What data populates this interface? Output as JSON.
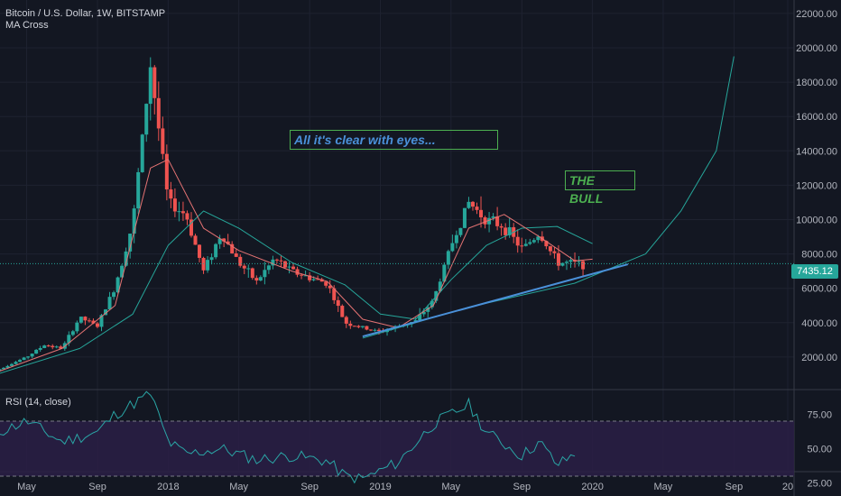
{
  "header": {
    "symbol_title": "Bitcoin / U.S. Dollar, 1W, BITSTAMP",
    "indicator": "MA Cross"
  },
  "rsi_panel": {
    "label": "RSI (14, close)"
  },
  "annotations": {
    "note": "All it's clear with eyes...",
    "bull": "THE BULL"
  },
  "current_price": "7435.12",
  "colors": {
    "background": "#131722",
    "up": "#26a69a",
    "down": "#ef5350",
    "ma_fast": "#e57373",
    "ma_slow": "#26a69a",
    "trendline": "#4a90d9",
    "rsi_line": "#2aa5a5",
    "rsi_band": "#2a1f45",
    "annotation_note": "#4a90d9",
    "annotation_bull": "#4caf50"
  },
  "chart_data": [
    {
      "type": "candlestick",
      "title": "Bitcoin / U.S. Dollar, 1W, BITSTAMP",
      "x_ticks": [
        "May",
        "Sep",
        "2018",
        "May",
        "Sep",
        "2019",
        "May",
        "Sep",
        "2020",
        "May",
        "Sep",
        "20"
      ],
      "y_ticks": [
        "2000.00",
        "4000.00",
        "6000.00",
        "8000.00",
        "10000.00",
        "12000.00",
        "14000.00",
        "16000.00",
        "18000.00",
        "20000.00",
        "22000.00"
      ],
      "ylim": [
        0,
        23000
      ],
      "grid": true,
      "last_price": 7435.12,
      "price_path": [
        {
          "date": "2017-03",
          "price": 1100
        },
        {
          "date": "2017-05",
          "price": 2000
        },
        {
          "date": "2017-06",
          "price": 2700
        },
        {
          "date": "2017-07",
          "price": 2500
        },
        {
          "date": "2017-08",
          "price": 4300
        },
        {
          "date": "2017-09",
          "price": 3800
        },
        {
          "date": "2017-10",
          "price": 6100
        },
        {
          "date": "2017-11",
          "price": 9800
        },
        {
          "date": "2017-12",
          "price": 19000
        },
        {
          "date": "2018-01",
          "price": 11000
        },
        {
          "date": "2018-02",
          "price": 10300
        },
        {
          "date": "2018-03",
          "price": 7000
        },
        {
          "date": "2018-04",
          "price": 9200
        },
        {
          "date": "2018-05",
          "price": 7500
        },
        {
          "date": "2018-06",
          "price": 6400
        },
        {
          "date": "2018-07",
          "price": 7700
        },
        {
          "date": "2018-08",
          "price": 7000
        },
        {
          "date": "2018-09",
          "price": 6600
        },
        {
          "date": "2018-10",
          "price": 6300
        },
        {
          "date": "2018-11",
          "price": 4000
        },
        {
          "date": "2018-12",
          "price": 3700
        },
        {
          "date": "2019-01",
          "price": 3450
        },
        {
          "date": "2019-02",
          "price": 3800
        },
        {
          "date": "2019-03",
          "price": 4100
        },
        {
          "date": "2019-04",
          "price": 5300
        },
        {
          "date": "2019-05",
          "price": 8500
        },
        {
          "date": "2019-06",
          "price": 11000
        },
        {
          "date": "2019-07",
          "price": 10000
        },
        {
          "date": "2019-08",
          "price": 9600
        },
        {
          "date": "2019-09",
          "price": 8300
        },
        {
          "date": "2019-10",
          "price": 9200
        },
        {
          "date": "2019-11",
          "price": 7500
        },
        {
          "date": "2019-12",
          "price": 7435.12
        }
      ],
      "ma_fast": [
        {
          "date": "2017-03",
          "price": 1000
        },
        {
          "date": "2017-07",
          "price": 2500
        },
        {
          "date": "2017-10",
          "price": 5000
        },
        {
          "date": "2017-12",
          "price": 13000
        },
        {
          "date": "2018-01",
          "price": 13500
        },
        {
          "date": "2018-03",
          "price": 9500
        },
        {
          "date": "2018-05",
          "price": 8200
        },
        {
          "date": "2018-08",
          "price": 7000
        },
        {
          "date": "2018-10",
          "price": 6400
        },
        {
          "date": "2018-12",
          "price": 4200
        },
        {
          "date": "2019-02",
          "price": 3700
        },
        {
          "date": "2019-04",
          "price": 5000
        },
        {
          "date": "2019-06",
          "price": 9500
        },
        {
          "date": "2019-08",
          "price": 10300
        },
        {
          "date": "2019-10",
          "price": 9000
        },
        {
          "date": "2019-12",
          "price": 7600
        },
        {
          "date": "2020-01",
          "price": 7700
        }
      ],
      "ma_slow": [
        {
          "date": "2017-03",
          "price": 900
        },
        {
          "date": "2017-08",
          "price": 2500
        },
        {
          "date": "2017-11",
          "price": 4500
        },
        {
          "date": "2018-01",
          "price": 8500
        },
        {
          "date": "2018-03",
          "price": 10500
        },
        {
          "date": "2018-05",
          "price": 9500
        },
        {
          "date": "2018-08",
          "price": 7500
        },
        {
          "date": "2018-11",
          "price": 6200
        },
        {
          "date": "2019-01",
          "price": 4500
        },
        {
          "date": "2019-03",
          "price": 4200
        },
        {
          "date": "2019-05",
          "price": 6500
        },
        {
          "date": "2019-07",
          "price": 8500
        },
        {
          "date": "2019-09",
          "price": 9500
        },
        {
          "date": "2019-11",
          "price": 9600
        },
        {
          "date": "2020-01",
          "price": 8600
        }
      ],
      "trendline": [
        {
          "date": "2018-12",
          "price": 3200
        },
        {
          "date": "2020-03",
          "price": 7400
        }
      ],
      "projection_curve": [
        {
          "date": "2018-12",
          "price": 3100
        },
        {
          "date": "2019-06",
          "price": 4900
        },
        {
          "date": "2019-12",
          "price": 6300
        },
        {
          "date": "2020-04",
          "price": 8000
        },
        {
          "date": "2020-06",
          "price": 10500
        },
        {
          "date": "2020-08",
          "price": 14000
        },
        {
          "date": "2020-09",
          "price": 19500
        }
      ]
    },
    {
      "type": "line",
      "title": "RSI (14, close)",
      "y_ticks": [
        "25.00",
        "50.00",
        "75.00"
      ],
      "ylim": [
        22,
        90
      ],
      "bands": [
        30,
        70
      ],
      "series": [
        {
          "values": [
            {
              "date": "2017-03",
              "value": 60
            },
            {
              "date": "2017-05",
              "value": 70
            },
            {
              "date": "2017-07",
              "value": 55
            },
            {
              "date": "2017-09",
              "value": 62
            },
            {
              "date": "2017-10",
              "value": 75
            },
            {
              "date": "2017-12",
              "value": 90
            },
            {
              "date": "2018-01",
              "value": 55
            },
            {
              "date": "2018-02",
              "value": 46
            },
            {
              "date": "2018-04",
              "value": 50
            },
            {
              "date": "2018-06",
              "value": 42
            },
            {
              "date": "2018-08",
              "value": 45
            },
            {
              "date": "2018-10",
              "value": 41
            },
            {
              "date": "2018-11",
              "value": 30
            },
            {
              "date": "2018-12",
              "value": 28
            },
            {
              "date": "2019-02",
              "value": 40
            },
            {
              "date": "2019-04",
              "value": 68
            },
            {
              "date": "2019-06",
              "value": 82
            },
            {
              "date": "2019-07",
              "value": 62
            },
            {
              "date": "2019-09",
              "value": 45
            },
            {
              "date": "2019-10",
              "value": 55
            },
            {
              "date": "2019-11",
              "value": 38
            },
            {
              "date": "2019-12",
              "value": 46
            }
          ]
        }
      ]
    }
  ]
}
